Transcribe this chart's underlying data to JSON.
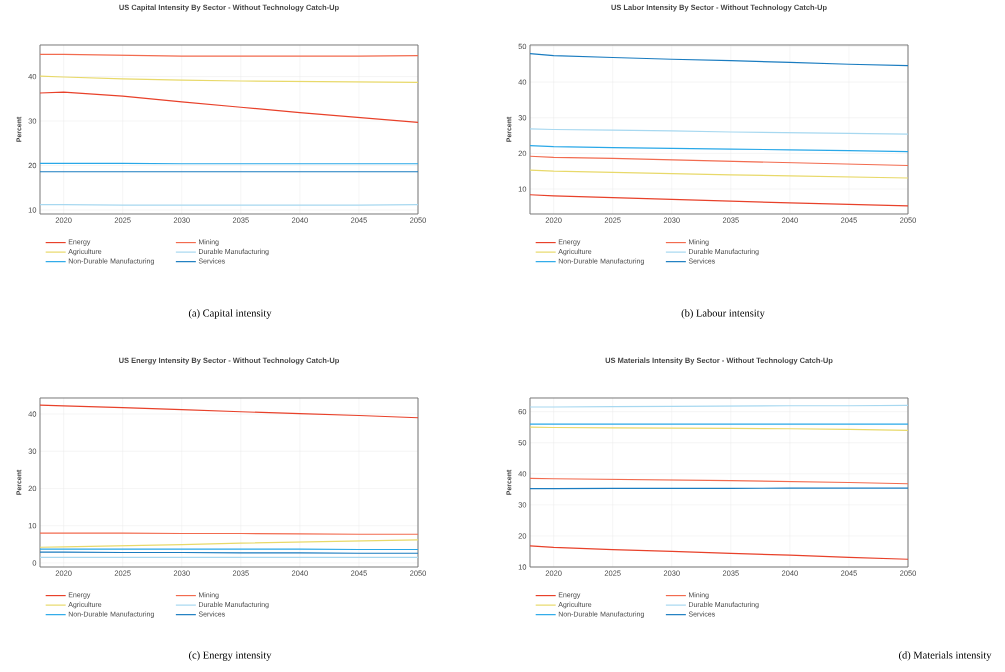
{
  "chart_data": [
    {
      "type": "line",
      "title": "US Capital Intensity By Sector - Without Technology Catch-Up",
      "ylabel": "Percent",
      "x": [
        2018,
        2020,
        2025,
        2030,
        2035,
        2040,
        2045,
        2050
      ],
      "xlim": [
        2018,
        2050
      ],
      "ylim": [
        9.1,
        47.1
      ],
      "xticks": [
        2020,
        2025,
        2030,
        2035,
        2040,
        2045,
        2050
      ],
      "yticks": [
        10,
        20,
        30,
        40
      ],
      "grid": true,
      "legend": "bottom",
      "marker": "none",
      "annotations": [
        "(a) Capital intensity"
      ],
      "series": [
        {
          "name": "Energy",
          "color": "#e8412a",
          "values": [
            36.3,
            36.5,
            35.6,
            34.3,
            33.1,
            31.9,
            30.8,
            29.7
          ]
        },
        {
          "name": "Mining",
          "color": "#f26b4f",
          "values": [
            45.0,
            45.0,
            44.8,
            44.6,
            44.6,
            44.6,
            44.6,
            44.7
          ]
        },
        {
          "name": "Agriculture",
          "color": "#e8d96a",
          "values": [
            40.1,
            39.9,
            39.5,
            39.2,
            39.0,
            38.9,
            38.8,
            38.7
          ]
        },
        {
          "name": "Durable Manufacturing",
          "color": "#a7d8f0",
          "values": [
            11.2,
            11.2,
            11.1,
            11.1,
            11.1,
            11.1,
            11.1,
            11.2
          ]
        },
        {
          "name": "Non-Durable Manufacturing",
          "color": "#29a8e8",
          "values": [
            20.5,
            20.5,
            20.5,
            20.4,
            20.4,
            20.4,
            20.4,
            20.4
          ]
        },
        {
          "name": "Services",
          "color": "#1a7cc0",
          "values": [
            18.6,
            18.6,
            18.6,
            18.6,
            18.6,
            18.6,
            18.6,
            18.6
          ]
        }
      ]
    },
    {
      "type": "line",
      "title": "US Labor Intensity By Sector - Without Technology Catch-Up",
      "ylabel": "Percent",
      "x": [
        2018,
        2020,
        2025,
        2030,
        2035,
        2040,
        2045,
        2050
      ],
      "xlim": [
        2018,
        2050
      ],
      "ylim": [
        3,
        50.4
      ],
      "xticks": [
        2020,
        2025,
        2030,
        2035,
        2040,
        2045,
        2050
      ],
      "yticks": [
        10,
        20,
        30,
        40,
        50
      ],
      "grid": true,
      "legend": "bottom",
      "marker": "none",
      "annotations": [
        "(b) Labour intensity"
      ],
      "series": [
        {
          "name": "Energy",
          "color": "#e8412a",
          "values": [
            8.4,
            8.1,
            7.6,
            7.1,
            6.6,
            6.1,
            5.7,
            5.3
          ]
        },
        {
          "name": "Mining",
          "color": "#f26b4f",
          "values": [
            19.2,
            18.9,
            18.6,
            18.2,
            17.8,
            17.4,
            17.0,
            16.6
          ]
        },
        {
          "name": "Agriculture",
          "color": "#e8d96a",
          "values": [
            15.3,
            15.0,
            14.7,
            14.3,
            14.0,
            13.7,
            13.4,
            13.1
          ]
        },
        {
          "name": "Durable Manufacturing",
          "color": "#a7d8f0",
          "values": [
            26.9,
            26.7,
            26.5,
            26.3,
            26.0,
            25.8,
            25.6,
            25.4
          ]
        },
        {
          "name": "Non-Durable Manufacturing",
          "color": "#29a8e8",
          "values": [
            22.2,
            21.9,
            21.6,
            21.4,
            21.2,
            21.0,
            20.8,
            20.5
          ]
        },
        {
          "name": "Services",
          "color": "#1a7cc0",
          "values": [
            48.0,
            47.4,
            46.9,
            46.4,
            46.0,
            45.5,
            45.0,
            44.6
          ]
        }
      ]
    },
    {
      "type": "line",
      "title": "US Energy Intensity By Sector - Without Technology Catch-Up",
      "ylabel": "Percent",
      "x": [
        2018,
        2020,
        2025,
        2030,
        2035,
        2040,
        2045,
        2050
      ],
      "xlim": [
        2018,
        2050
      ],
      "ylim": [
        -1.1,
        44.3
      ],
      "xticks": [
        2020,
        2025,
        2030,
        2035,
        2040,
        2045,
        2050
      ],
      "yticks": [
        0,
        10,
        20,
        30,
        40
      ],
      "grid": true,
      "legend": "bottom",
      "marker": "none",
      "annotations": [
        "(c) Energy intensity"
      ],
      "series": [
        {
          "name": "Energy",
          "color": "#e8412a",
          "values": [
            42.4,
            42.2,
            41.7,
            41.2,
            40.6,
            40.1,
            39.6,
            39.0
          ]
        },
        {
          "name": "Mining",
          "color": "#f26b4f",
          "values": [
            8.0,
            8.0,
            8.0,
            7.9,
            7.9,
            7.8,
            7.7,
            7.7
          ]
        },
        {
          "name": "Agriculture",
          "color": "#e8d96a",
          "values": [
            4.2,
            4.3,
            4.6,
            4.9,
            5.3,
            5.6,
            5.9,
            6.2
          ]
        },
        {
          "name": "Durable Manufacturing",
          "color": "#a7d8f0",
          "values": [
            1.5,
            1.5,
            1.5,
            1.5,
            1.5,
            1.5,
            1.5,
            1.5
          ]
        },
        {
          "name": "Non-Durable Manufacturing",
          "color": "#29a8e8",
          "values": [
            3.7,
            3.7,
            3.7,
            3.7,
            3.7,
            3.7,
            3.6,
            3.6
          ]
        },
        {
          "name": "Services",
          "color": "#1a7cc0",
          "values": [
            2.9,
            2.9,
            2.8,
            2.8,
            2.7,
            2.7,
            2.6,
            2.6
          ]
        }
      ]
    },
    {
      "type": "line",
      "title": "US Materials Intensity By Sector - Without Technology Catch-Up",
      "ylabel": "Percent",
      "x": [
        2018,
        2020,
        2025,
        2030,
        2035,
        2040,
        2045,
        2050
      ],
      "xlim": [
        2018,
        2050
      ],
      "ylim": [
        10,
        64.4
      ],
      "xticks": [
        2020,
        2025,
        2030,
        2035,
        2040,
        2045,
        2050
      ],
      "yticks": [
        10,
        20,
        30,
        40,
        50,
        60
      ],
      "grid": true,
      "legend": "bottom",
      "marker": "none",
      "annotations": [
        "(d) Materials intensity"
      ],
      "series": [
        {
          "name": "Energy",
          "color": "#e8412a",
          "values": [
            16.8,
            16.3,
            15.6,
            15.0,
            14.4,
            13.8,
            13.1,
            12.5
          ]
        },
        {
          "name": "Mining",
          "color": "#f26b4f",
          "values": [
            38.5,
            38.4,
            38.2,
            38.0,
            37.8,
            37.5,
            37.2,
            36.8
          ]
        },
        {
          "name": "Agriculture",
          "color": "#e8d96a",
          "values": [
            55.0,
            54.9,
            54.8,
            54.7,
            54.6,
            54.5,
            54.3,
            54.0
          ]
        },
        {
          "name": "Durable Manufacturing",
          "color": "#a7d8f0",
          "values": [
            61.5,
            61.5,
            61.6,
            61.7,
            61.8,
            61.9,
            61.9,
            62.0
          ]
        },
        {
          "name": "Non-Durable Manufacturing",
          "color": "#29a8e8",
          "values": [
            56.0,
            56.0,
            56.0,
            56.0,
            56.0,
            56.0,
            56.0,
            56.0
          ]
        },
        {
          "name": "Services",
          "color": "#1a7cc0",
          "values": [
            35.2,
            35.2,
            35.3,
            35.3,
            35.3,
            35.4,
            35.4,
            35.4
          ]
        }
      ]
    }
  ]
}
